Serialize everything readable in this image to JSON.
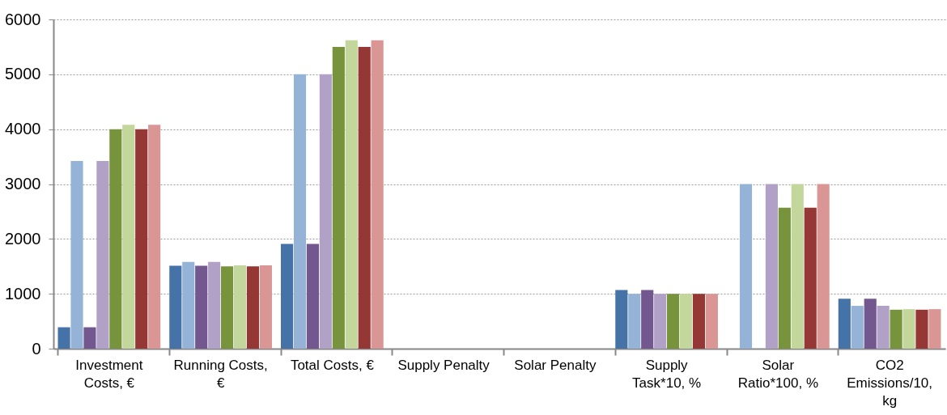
{
  "chart_data": {
    "type": "bar",
    "categories": [
      "Investment Costs, €",
      "Running Costs, €",
      "Total Costs, €",
      "Supply Penalty",
      "Solar Penalty",
      "Supply Task*10, %",
      "Solar Ratio*100, %",
      "CO2 Emissions/10, kg"
    ],
    "series": [
      {
        "color": "#4572a7",
        "values": [
          390,
          1510,
          1910,
          0,
          0,
          1070,
          0,
          910
        ]
      },
      {
        "color": "#95b3d7",
        "values": [
          3420,
          1580,
          5000,
          0,
          0,
          1000,
          3000,
          780
        ]
      },
      {
        "color": "#72588e",
        "values": [
          390,
          1510,
          1910,
          0,
          0,
          1070,
          0,
          910
        ]
      },
      {
        "color": "#b2a1c7",
        "values": [
          3420,
          1580,
          5000,
          0,
          0,
          1000,
          3000,
          780
        ]
      },
      {
        "color": "#77933c",
        "values": [
          4000,
          1500,
          5500,
          0,
          0,
          1000,
          2570,
          710
        ]
      },
      {
        "color": "#c3d69b",
        "values": [
          4080,
          1520,
          5620,
          0,
          0,
          1000,
          3000,
          720
        ]
      },
      {
        "color": "#953735",
        "values": [
          4000,
          1500,
          5500,
          0,
          0,
          1000,
          2570,
          710
        ]
      },
      {
        "color": "#d99694",
        "values": [
          4080,
          1520,
          5620,
          0,
          0,
          1000,
          3000,
          720
        ]
      }
    ],
    "ylim": [
      0,
      6000
    ],
    "yticks": [
      0,
      1000,
      2000,
      3000,
      4000,
      5000,
      6000
    ],
    "grid": "y",
    "legend": false
  }
}
